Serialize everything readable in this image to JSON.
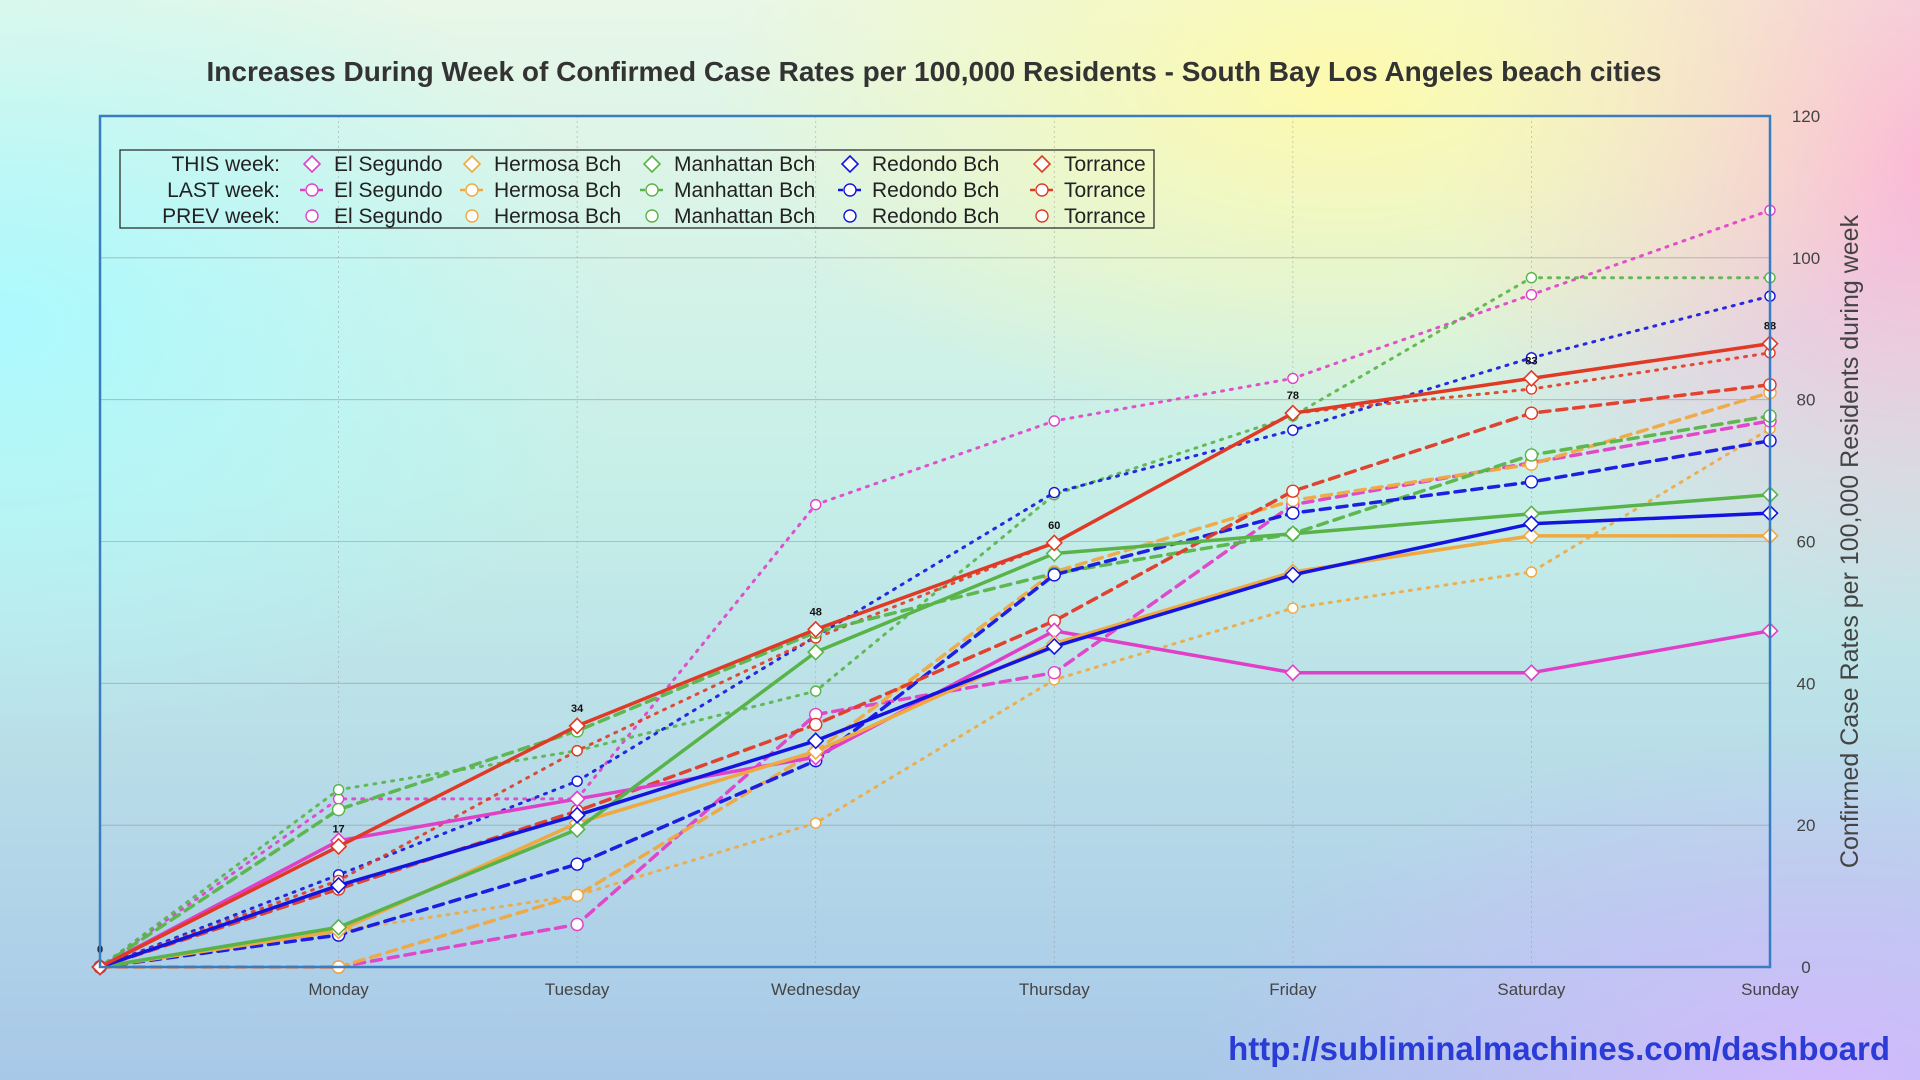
{
  "footer": {
    "url": "http://subliminalmachines.com/dashboard"
  },
  "chart_data": {
    "type": "line",
    "title": "Increases During Week of Confirmed Case Rates per 100,000 Residents - South Bay Los Angeles beach cities",
    "xlabel": "",
    "ylabel": "Confirmed Case Rates per 100,000 Residents during week",
    "categories": [
      "",
      "Monday",
      "Tuesday",
      "Wednesday",
      "Thursday",
      "Friday",
      "Saturday",
      "Sunday"
    ],
    "ylim": [
      0,
      120
    ],
    "yticks": [
      0,
      20,
      40,
      60,
      80,
      100,
      120
    ],
    "y_axis_side": "right",
    "grid": true,
    "legend_placement": "top-left",
    "legend_rows": [
      "THIS week:",
      "LAST week:",
      "PREV week:"
    ],
    "cities": [
      "El Segundo",
      "Hermosa Bch",
      "Manhattan Bch",
      "Redondo Bch",
      "Torrance"
    ],
    "colors": {
      "El Segundo": "#e040c8",
      "Hermosa Bch": "#f0a840",
      "Manhattan Bch": "#58b448",
      "Redondo Bch": "#1414e0",
      "Torrance": "#e03a26"
    },
    "series": [
      {
        "city": "El Segundo",
        "week": "THIS",
        "values": [
          0,
          17.8,
          23.7,
          29.6,
          47.4,
          41.5,
          41.5,
          47.4
        ]
      },
      {
        "city": "El Segundo",
        "week": "LAST",
        "values": [
          0,
          0,
          6,
          35.6,
          41.5,
          65.2,
          71.1,
          77
        ]
      },
      {
        "city": "El Segundo",
        "week": "PREV",
        "values": [
          0,
          23.7,
          23.7,
          65.2,
          77,
          83,
          94.8,
          106.7
        ]
      },
      {
        "city": "Hermosa Bch",
        "week": "THIS",
        "values": [
          0,
          5.1,
          20.3,
          30.4,
          45.6,
          55.7,
          60.8,
          60.8
        ]
      },
      {
        "city": "Hermosa Bch",
        "week": "LAST",
        "values": [
          0,
          0,
          10.1,
          30.4,
          55.7,
          65.8,
          70.9,
          81
        ]
      },
      {
        "city": "Hermosa Bch",
        "week": "PREV",
        "values": [
          0,
          5.1,
          10.1,
          20.3,
          40.5,
          50.6,
          55.7,
          75.9
        ]
      },
      {
        "city": "Manhattan Bch",
        "week": "THIS",
        "values": [
          0,
          5.6,
          19.4,
          44.4,
          58.3,
          61.1,
          63.9,
          66.6
        ]
      },
      {
        "city": "Manhattan Bch",
        "week": "LAST",
        "values": [
          0,
          22.2,
          33.3,
          47.2,
          55.5,
          61.1,
          72.2,
          77.7
        ]
      },
      {
        "city": "Manhattan Bch",
        "week": "PREV",
        "values": [
          0,
          25,
          30.5,
          38.9,
          66.6,
          77.7,
          97.2,
          97.2
        ]
      },
      {
        "city": "Redondo Bch",
        "week": "THIS",
        "values": [
          0,
          11.5,
          21.4,
          31.9,
          45.2,
          55.3,
          62.5,
          64
        ]
      },
      {
        "city": "Redondo Bch",
        "week": "LAST",
        "values": [
          0,
          4.5,
          14.5,
          29.1,
          55.3,
          64,
          68.4,
          74.2
        ]
      },
      {
        "city": "Redondo Bch",
        "week": "PREV",
        "values": [
          0,
          13,
          26.2,
          46.6,
          66.9,
          75.7,
          85.9,
          94.6
        ]
      },
      {
        "city": "Torrance",
        "week": "THIS",
        "values": [
          0,
          17,
          34,
          47.6,
          59.8,
          78.1,
          83,
          87.9
        ]
      },
      {
        "city": "Torrance",
        "week": "LAST",
        "values": [
          0,
          11,
          22,
          34.2,
          48.8,
          67.1,
          78.1,
          82.1
        ]
      },
      {
        "city": "Torrance",
        "week": "PREV",
        "values": [
          0,
          12.2,
          30.5,
          46.4,
          59.8,
          78.1,
          81.5,
          86.6
        ]
      }
    ],
    "data_labels": [
      {
        "x": "",
        "label": "0",
        "value": 0
      },
      {
        "x": "Monday",
        "label": "17",
        "value": 17
      },
      {
        "x": "Tuesday",
        "label": "34",
        "value": 34
      },
      {
        "x": "Wednesday",
        "label": "48",
        "value": 47.6
      },
      {
        "x": "Thursday",
        "label": "60",
        "value": 59.8
      },
      {
        "x": "Friday",
        "label": "78",
        "value": 78.1
      },
      {
        "x": "Saturday",
        "label": "83",
        "value": 83
      },
      {
        "x": "Sunday",
        "label": "88",
        "value": 87.9
      }
    ]
  }
}
